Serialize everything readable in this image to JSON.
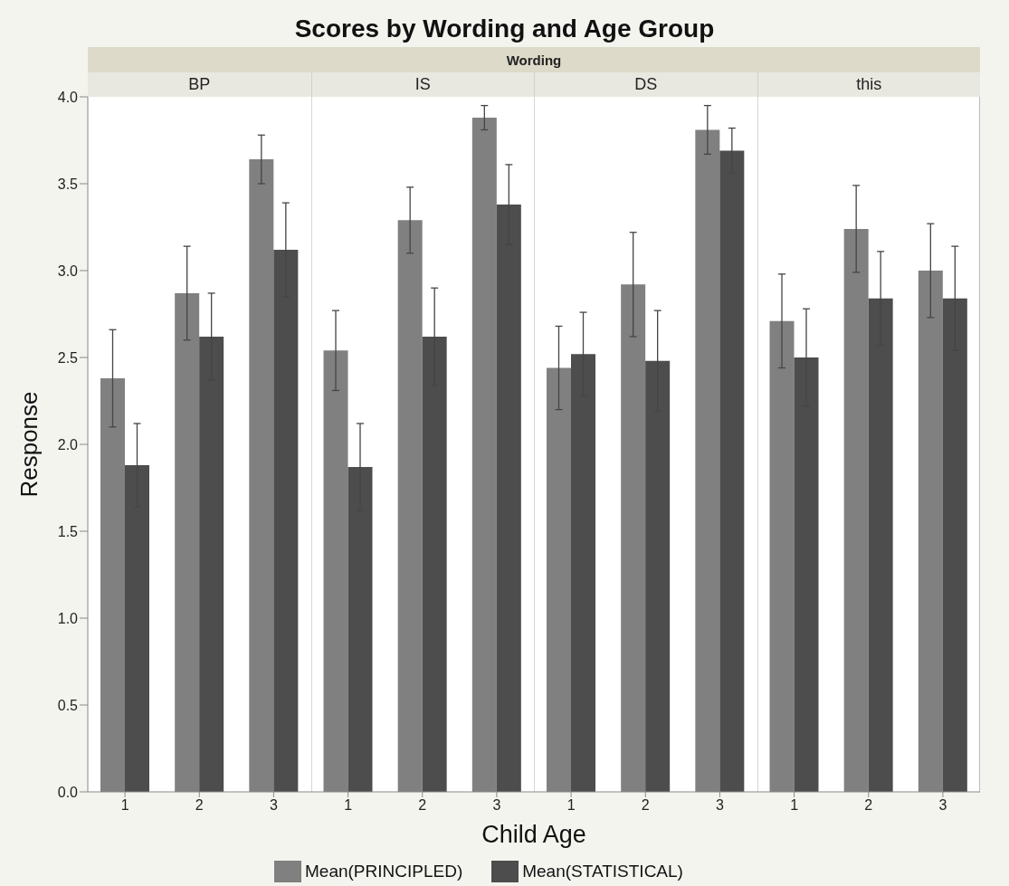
{
  "chart_data": {
    "type": "bar",
    "title": "Scores by Wording and Age Group",
    "annotations": [
      "Wording",
      "BP",
      "IS",
      "DS",
      "this"
    ],
    "xlabel": "Child Age",
    "ylabel": "Response",
    "categories": [
      "1",
      "2",
      "3",
      "1",
      "2",
      "3",
      "1",
      "2",
      "3",
      "1",
      "2",
      "3"
    ],
    "series": [
      {
        "name": "Mean(PRINCIPLED)",
        "color": "#808080",
        "values": [
          2.38,
          2.87,
          3.64,
          2.54,
          3.29,
          3.88,
          2.44,
          2.92,
          3.81,
          2.71,
          3.24,
          3.0
        ],
        "errors": [
          0.28,
          0.27,
          0.14,
          0.23,
          0.19,
          0.07,
          0.24,
          0.3,
          0.14,
          0.27,
          0.25,
          0.27
        ]
      },
      {
        "name": "Mean(STATISTICAL)",
        "color": "#4d4d4d",
        "values": [
          1.88,
          2.62,
          3.12,
          1.87,
          2.62,
          3.38,
          2.52,
          2.48,
          3.69,
          2.5,
          2.84,
          2.84
        ],
        "errors": [
          0.24,
          0.25,
          0.27,
          0.25,
          0.28,
          0.23,
          0.24,
          0.29,
          0.13,
          0.28,
          0.27,
          0.3
        ]
      }
    ],
    "ylim": [
      0,
      4
    ],
    "yticks": [
      {
        "value": 0,
        "label": "0.0"
      },
      0.5,
      {
        "value": 1,
        "label": "1.0"
      },
      1.5,
      {
        "value": 2,
        "label": "2.0"
      },
      2.5,
      {
        "value": 3,
        "label": "3.0"
      },
      3.5,
      {
        "value": 4,
        "label": "4.0"
      }
    ],
    "legend": "bottom"
  }
}
